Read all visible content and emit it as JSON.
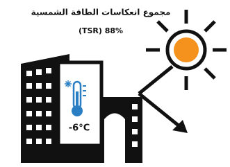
{
  "title": "مجموع انعكاسات الطاقة الشمسية",
  "tsr": "(TSR) 88%",
  "temperature": "-6°C"
}
